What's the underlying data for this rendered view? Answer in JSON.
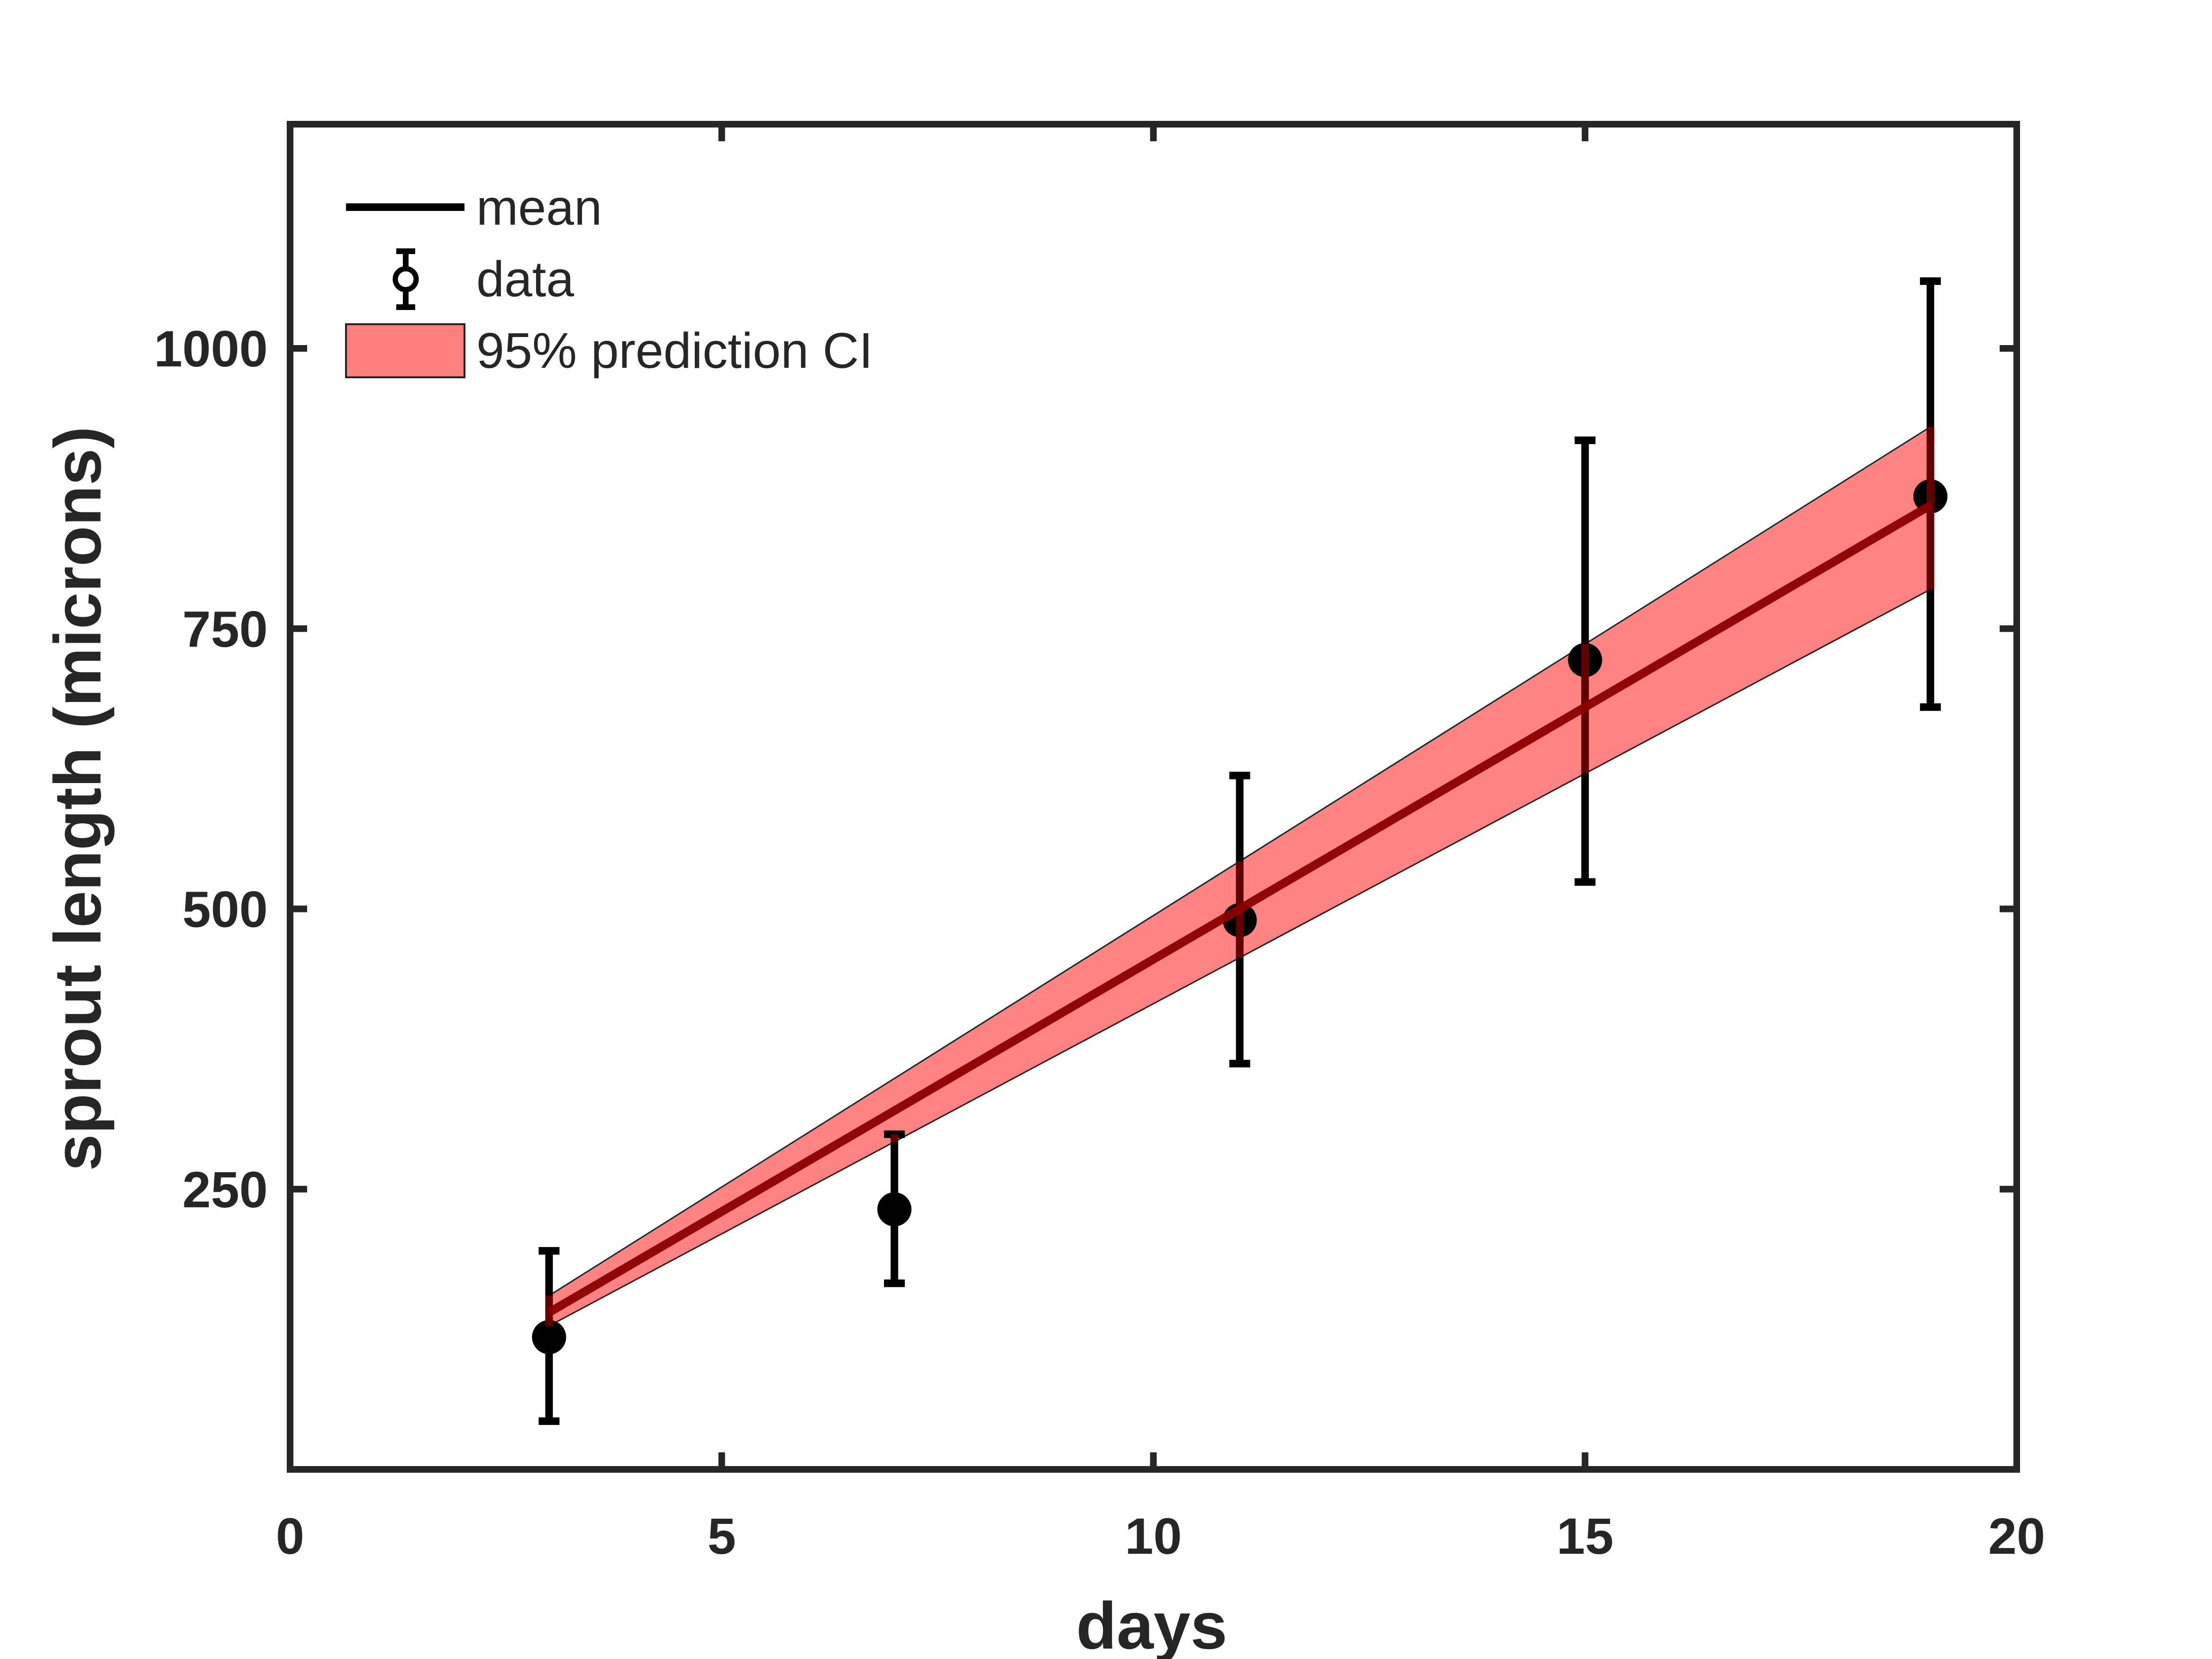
{
  "chart_data": {
    "type": "line",
    "title": "",
    "xlabel": "days",
    "ylabel": "sprout length (microns)",
    "xlim": [
      0,
      20
    ],
    "ylim": [
      0,
      1200
    ],
    "xticks": [
      0,
      5,
      10,
      15,
      20
    ],
    "yticks": [
      250,
      500,
      750,
      1000
    ],
    "xtick_labels": [
      "0",
      "5",
      "10",
      "15",
      "20"
    ],
    "ytick_labels": [
      "250",
      "500",
      "750",
      "1000"
    ],
    "grid": false,
    "legend_position": "top-left",
    "legend": [
      {
        "label": "mean",
        "kind": "line"
      },
      {
        "label": "data",
        "kind": "errorbar"
      },
      {
        "label": "95% prediction CI",
        "kind": "patch"
      }
    ],
    "series": [
      {
        "name": "mean",
        "kind": "line",
        "color": "#8b0000",
        "x": [
          3,
          19
        ],
        "y": [
          140,
          860
        ]
      },
      {
        "name": "data",
        "kind": "errorbar",
        "color": "#000000",
        "x": [
          3,
          7,
          11,
          15,
          19
        ],
        "y": [
          118,
          232,
          490,
          722,
          868
        ],
        "lower": [
          43,
          166,
          362,
          524,
          680
        ],
        "upper": [
          195,
          299,
          619,
          918,
          1060
        ]
      },
      {
        "name": "95% prediction CI",
        "kind": "band",
        "color": "#ff6b6b",
        "x": [
          3,
          19
        ],
        "lower": [
          128,
          785
        ],
        "upper": [
          155,
          930
        ]
      }
    ]
  }
}
